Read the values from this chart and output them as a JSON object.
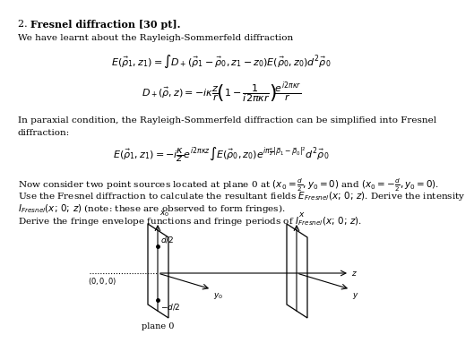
{
  "bg_color": "#ffffff",
  "text_color": "#000000",
  "title_normal": "2. ",
  "title_bold": "Fresnel diffraction [30 pt].",
  "intro": "We have learnt about the Rayleigh-Sommerfeld diffraction",
  "paraxial1": "In paraxial condition, the Rayleigh-Sommerfeld diffraction can be simplified into Fresnel",
  "paraxial2": "diffraction:",
  "body1": "Now consider two point sources located at plane 0 at $(x_0 = \\frac{d}{2}, y_0 = 0)$ and $(x_0 = -\\frac{d}{2}, y_0 = 0)$.",
  "body2": "Use the Fresnel diffraction to calculate the resultant fields $E_{Fresnel}(x;\\, 0;\\, z)$. Derive the intensity",
  "body3": "$I_{Fresnel}(x;\\, 0;\\, z)$ (note: these are observed to form fringes).",
  "body4": "Derive the fringe envelope functions and fringe periods of $I_{Fresnel}(x;\\, 0;\\, z)$.",
  "plane_label": "plane 0",
  "fs_body": 7.5,
  "fs_eq": 8.0,
  "fs_title": 8.0,
  "fs_small": 6.5
}
